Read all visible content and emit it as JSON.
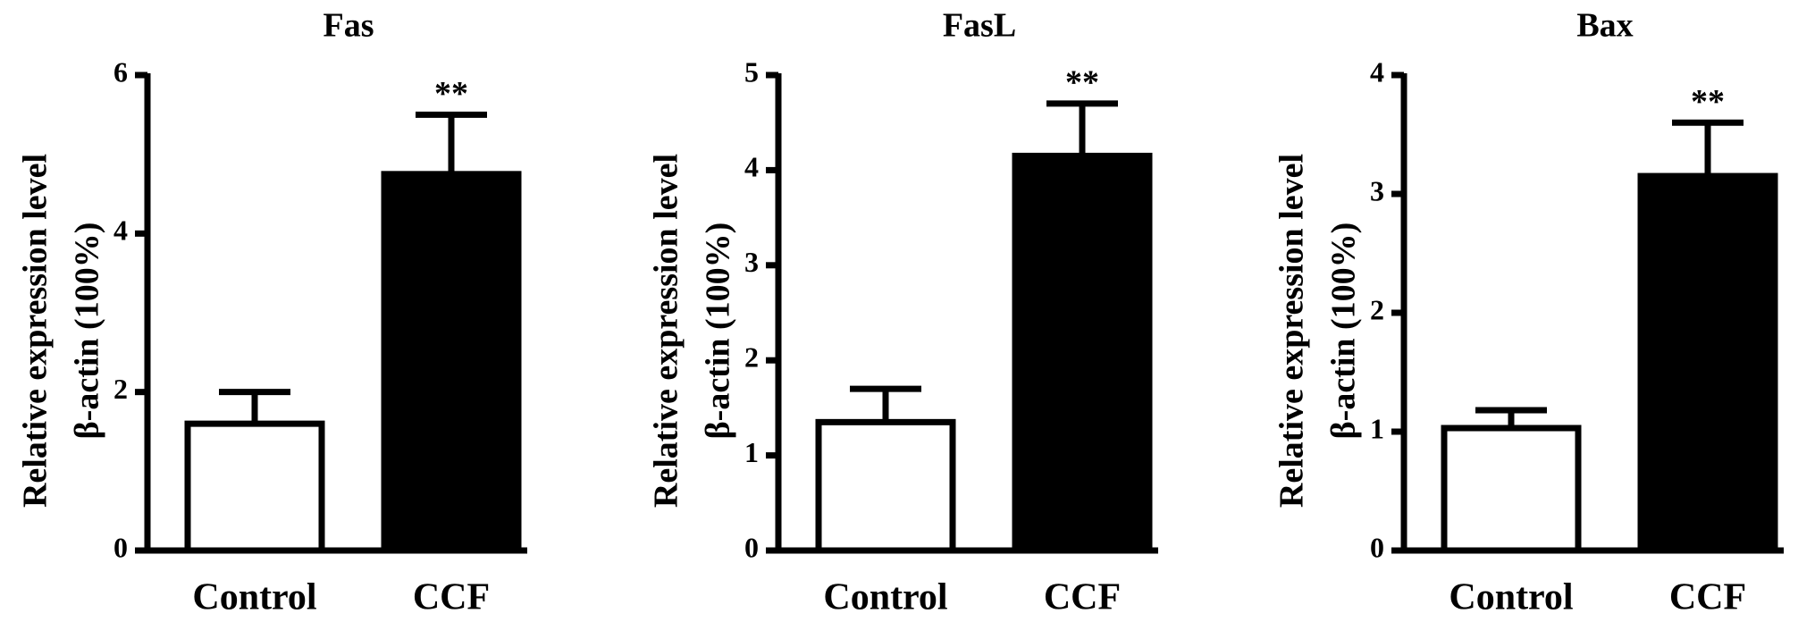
{
  "chart_data": [
    {
      "type": "bar",
      "title": "Fas",
      "ylabel": [
        "Relative expression level",
        "β-actin (100%)"
      ],
      "categories": [
        "Control",
        "CCF"
      ],
      "values": [
        1.6,
        4.75
      ],
      "errors": [
        0.4,
        0.75
      ],
      "colors": [
        "#ffffff",
        "#000000"
      ],
      "significance": [
        null,
        "**"
      ],
      "ylim": [
        0,
        6
      ],
      "yticks": [
        0,
        2,
        4,
        6
      ]
    },
    {
      "type": "bar",
      "title": "FasL",
      "ylabel": [
        "Relative expression level",
        "β-actin (100%)"
      ],
      "categories": [
        "Control",
        "CCF"
      ],
      "values": [
        1.35,
        4.15
      ],
      "errors": [
        0.35,
        0.55
      ],
      "colors": [
        "#ffffff",
        "#000000"
      ],
      "significance": [
        null,
        "**"
      ],
      "ylim": [
        0,
        5
      ],
      "yticks": [
        0,
        1,
        2,
        3,
        4,
        5
      ]
    },
    {
      "type": "bar",
      "title": "Bax",
      "ylabel": [
        "Relative expression level",
        "β-actin (100%)"
      ],
      "categories": [
        "Control",
        "CCF"
      ],
      "values": [
        1.03,
        3.15
      ],
      "errors": [
        0.15,
        0.45
      ],
      "colors": [
        "#ffffff",
        "#000000"
      ],
      "significance": [
        null,
        "**"
      ],
      "ylim": [
        0,
        4
      ],
      "yticks": [
        0,
        1,
        2,
        3,
        4
      ]
    }
  ]
}
